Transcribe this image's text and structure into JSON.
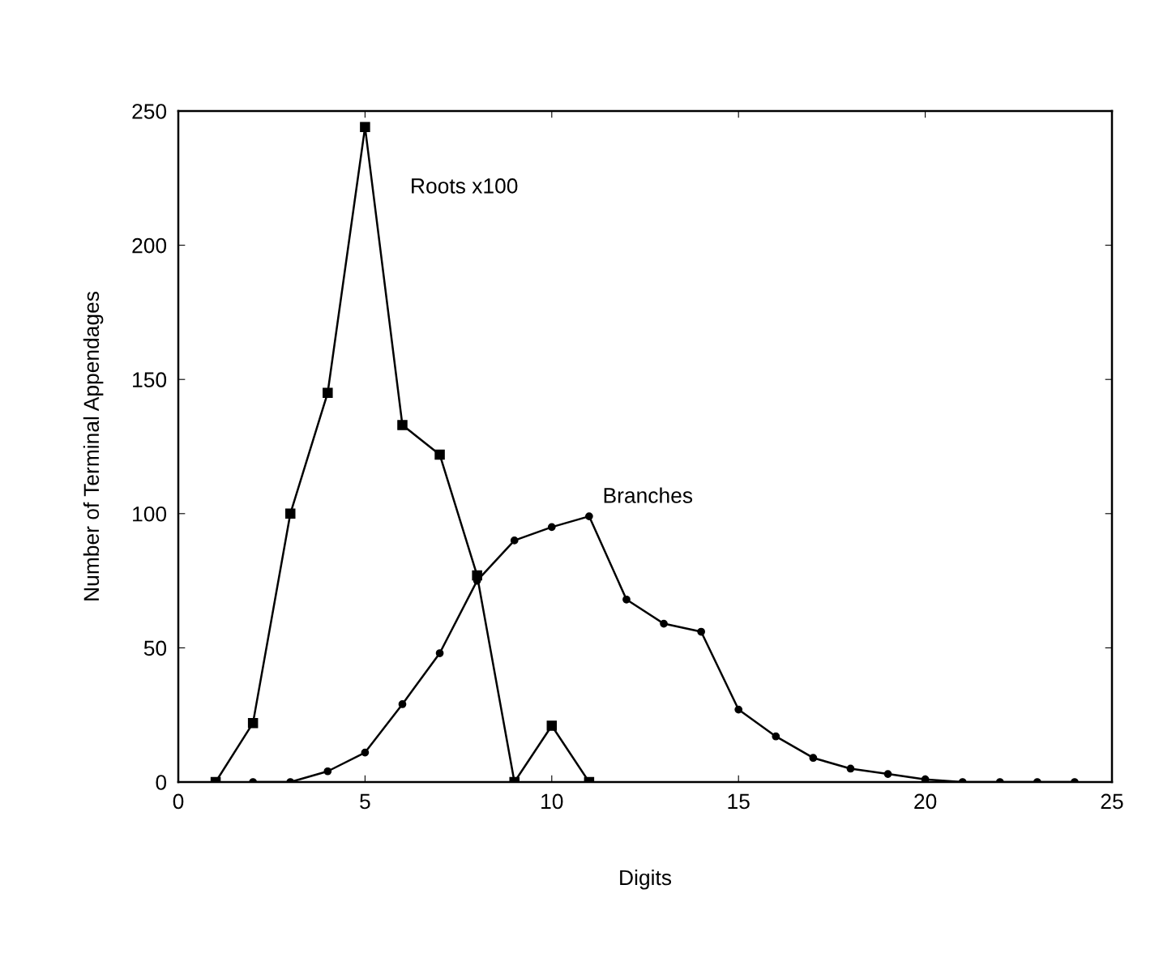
{
  "chart_data": {
    "type": "line",
    "xlabel": "Digits",
    "ylabel": "Number of Terminal Appendages",
    "xlim": [
      0,
      25
    ],
    "xticks": [
      0,
      5,
      10,
      15,
      20,
      25
    ],
    "ylim": [
      0,
      250
    ],
    "yticks": [
      0,
      50,
      100,
      150,
      200,
      250
    ],
    "grid": false,
    "legend": false,
    "line_style": "solid",
    "series": [
      {
        "name": "Roots x100",
        "color": "#000000",
        "marker": "square",
        "x": [
          1,
          2,
          3,
          4,
          5,
          6,
          7,
          8,
          9,
          10,
          11
        ],
        "values": [
          0,
          22,
          100,
          145,
          244,
          133,
          122,
          77,
          0,
          21,
          0
        ]
      },
      {
        "name": "Branches",
        "color": "#000000",
        "marker": "circle",
        "x": [
          2,
          3,
          4,
          5,
          6,
          7,
          8,
          9,
          10,
          11,
          12,
          13,
          14,
          15,
          16,
          17,
          18,
          19,
          20,
          21,
          22,
          23,
          24
        ],
        "values": [
          0,
          0,
          4,
          11,
          29,
          48,
          75,
          90,
          95,
          99,
          68,
          59,
          56,
          27,
          17,
          9,
          5,
          3,
          1,
          0,
          0,
          0,
          0
        ]
      }
    ]
  }
}
